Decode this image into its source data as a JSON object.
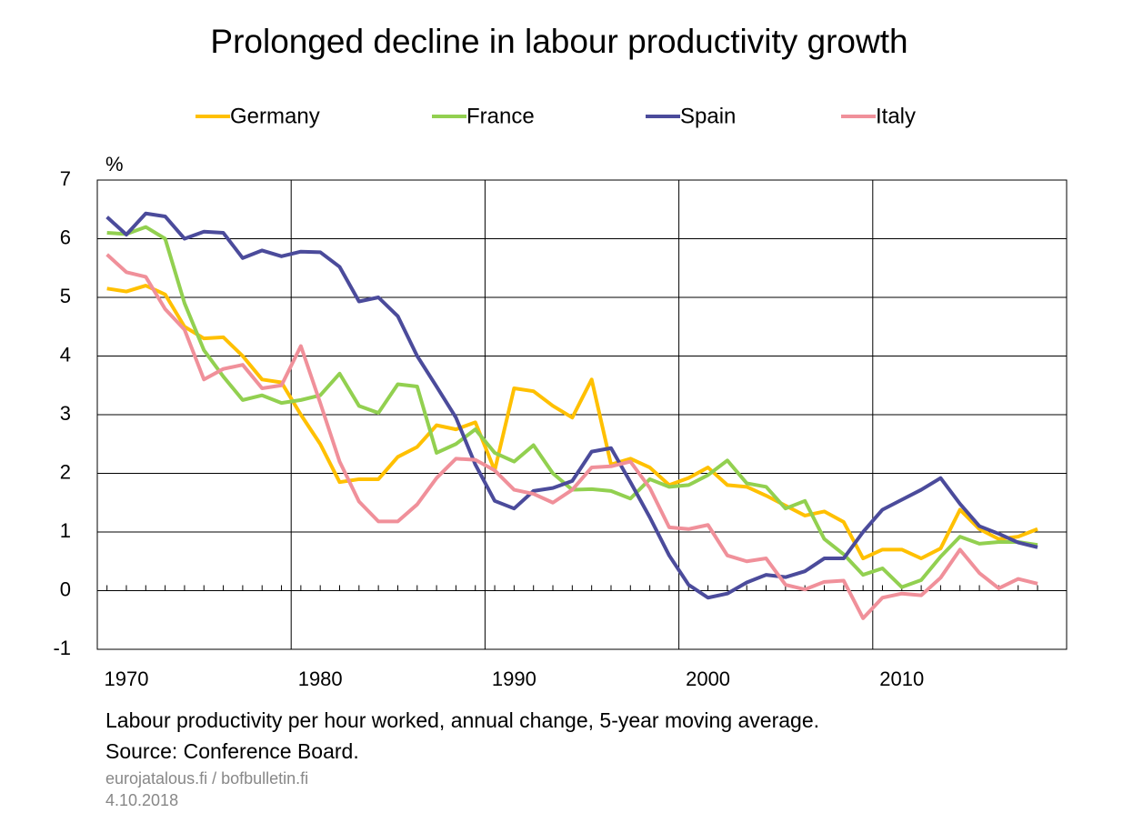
{
  "chart_data": {
    "type": "line",
    "title": "Prolonged decline in labour productivity growth",
    "y_unit": "%",
    "notes": [
      "Labour productivity per hour worked, annual change, 5-year moving average.",
      "Source: Conference Board."
    ],
    "credit": "eurojatalous.fi  / bofbulletin.fi",
    "date": "4.10.2018",
    "x": [
      1969,
      1970,
      1971,
      1972,
      1973,
      1974,
      1975,
      1976,
      1977,
      1978,
      1979,
      1980,
      1981,
      1982,
      1983,
      1984,
      1985,
      1986,
      1987,
      1988,
      1989,
      1990,
      1991,
      1992,
      1993,
      1994,
      1995,
      1996,
      1997,
      1998,
      1999,
      2000,
      2001,
      2002,
      2003,
      2004,
      2005,
      2006,
      2007,
      2008,
      2009,
      2010,
      2011,
      2012,
      2013,
      2014,
      2015,
      2016,
      2017
    ],
    "xlim": [
      1968.5,
      2018.5
    ],
    "xticks": [
      1970,
      1980,
      1990,
      2000,
      2010
    ],
    "x_grid_lines": [
      1978.5,
      1988.5,
      1998.5,
      2008.5
    ],
    "ylim": [
      -1,
      7
    ],
    "yticks": [
      -1,
      0,
      1,
      2,
      3,
      4,
      5,
      6,
      7
    ],
    "grid": true,
    "legend": "top",
    "series": [
      {
        "name": "Germany",
        "color": "#FFC000",
        "values": [
          5.15,
          5.1,
          5.2,
          5.05,
          4.5,
          4.3,
          4.32,
          4.0,
          3.6,
          3.55,
          3.0,
          2.5,
          1.85,
          1.9,
          1.9,
          2.28,
          2.45,
          2.82,
          2.75,
          2.87,
          2.05,
          3.45,
          3.4,
          3.15,
          2.95,
          3.6,
          2.15,
          2.25,
          2.1,
          1.8,
          1.92,
          2.1,
          1.8,
          1.77,
          1.62,
          1.45,
          1.28,
          1.35,
          1.17,
          0.55,
          0.7,
          0.7,
          0.55,
          0.72,
          1.38,
          1.05,
          0.88,
          0.92,
          1.05
        ]
      },
      {
        "name": "France",
        "color": "#92D050",
        "values": [
          6.1,
          6.08,
          6.2,
          6.0,
          4.9,
          4.1,
          3.65,
          3.25,
          3.33,
          3.2,
          3.25,
          3.33,
          3.7,
          3.15,
          3.03,
          3.52,
          3.48,
          2.35,
          2.5,
          2.75,
          2.35,
          2.2,
          2.48,
          2.0,
          1.72,
          1.73,
          1.7,
          1.57,
          1.9,
          1.77,
          1.8,
          1.97,
          2.22,
          1.83,
          1.77,
          1.4,
          1.53,
          0.88,
          0.62,
          0.27,
          0.38,
          0.06,
          0.18,
          0.58,
          0.92,
          0.8,
          0.83,
          0.83,
          0.78
        ]
      },
      {
        "name": "Spain",
        "color": "#4B4B9B",
        "values": [
          6.37,
          6.07,
          6.43,
          6.38,
          6.0,
          6.12,
          6.1,
          5.67,
          5.8,
          5.7,
          5.78,
          5.77,
          5.52,
          4.93,
          5.0,
          4.68,
          4.0,
          3.48,
          2.95,
          2.15,
          1.53,
          1.4,
          1.7,
          1.75,
          1.87,
          2.37,
          2.43,
          1.85,
          1.25,
          0.6,
          0.1,
          -0.12,
          -0.05,
          0.14,
          0.27,
          0.23,
          0.33,
          0.55,
          0.55,
          1.0,
          1.38,
          1.55,
          1.72,
          1.92,
          1.48,
          1.1,
          0.97,
          0.82,
          0.74
        ]
      },
      {
        "name": "Italy",
        "color": "#F0909A",
        "values": [
          5.73,
          5.43,
          5.35,
          4.8,
          4.45,
          3.6,
          3.78,
          3.85,
          3.45,
          3.5,
          4.17,
          3.2,
          2.2,
          1.52,
          1.18,
          1.18,
          1.47,
          1.92,
          2.25,
          2.23,
          2.05,
          1.72,
          1.65,
          1.5,
          1.72,
          2.1,
          2.12,
          2.2,
          1.75,
          1.08,
          1.05,
          1.12,
          0.6,
          0.5,
          0.55,
          0.1,
          0.02,
          0.15,
          0.17,
          -0.47,
          -0.12,
          -0.05,
          -0.08,
          0.22,
          0.7,
          0.3,
          0.04,
          0.2,
          0.12
        ]
      }
    ]
  }
}
